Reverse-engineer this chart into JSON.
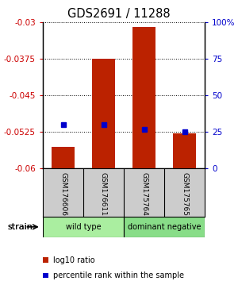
{
  "title": "GDS2691 / 11288",
  "samples": [
    "GSM176606",
    "GSM176611",
    "GSM175764",
    "GSM175765"
  ],
  "log10_ratio": [
    -0.0555,
    -0.0375,
    -0.031,
    -0.0528
  ],
  "percentile_rank": [
    30,
    30,
    27,
    25
  ],
  "baseline": -0.06,
  "ylim_left": [
    -0.06,
    -0.03
  ],
  "ylim_right": [
    0,
    100
  ],
  "yticks_left": [
    -0.06,
    -0.0525,
    -0.045,
    -0.0375,
    -0.03
  ],
  "ytick_labels_left": [
    "-0.06",
    "-0.0525",
    "-0.045",
    "-0.0375",
    "-0.03"
  ],
  "yticks_right": [
    0,
    25,
    50,
    75,
    100
  ],
  "ytick_labels_right": [
    "0",
    "25",
    "50",
    "75",
    "100%"
  ],
  "bar_color": "#bb2200",
  "square_color": "#0000cc",
  "groups": [
    {
      "label": "wild type",
      "samples": [
        0,
        1
      ],
      "color": "#aaeea0"
    },
    {
      "label": "dominant negative",
      "samples": [
        2,
        3
      ],
      "color": "#88dd88"
    }
  ],
  "strain_label": "strain",
  "legend_items": [
    {
      "color": "#bb2200",
      "label": "log10 ratio"
    },
    {
      "color": "#0000cc",
      "label": "percentile rank within the sample"
    }
  ],
  "bar_width": 0.55,
  "background_color": "#ffffff",
  "plot_bg_color": "#ffffff",
  "label_area_color": "#cccccc"
}
